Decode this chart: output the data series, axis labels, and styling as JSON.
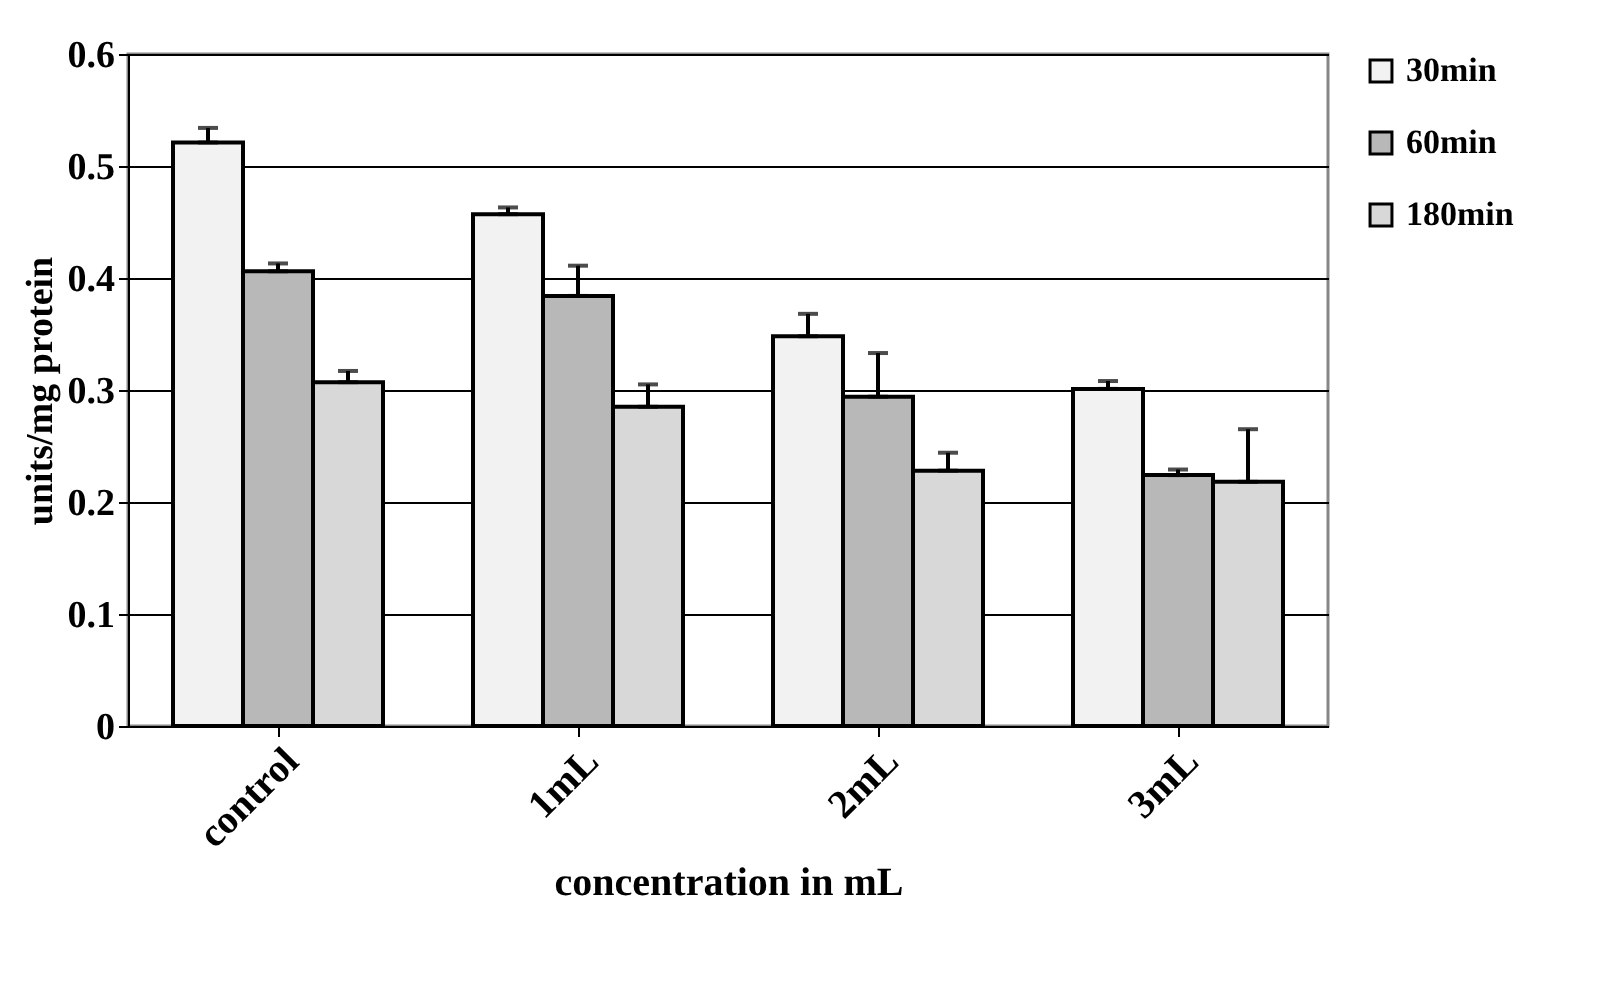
{
  "chart_data": {
    "type": "bar",
    "xlabel": "concentration in mL",
    "ylabel": "units/mg protein",
    "categories": [
      "control",
      "1mL",
      "2mL",
      "3mL"
    ],
    "series": [
      {
        "name": "30min",
        "color": "#f2f2f2",
        "values": [
          0.521,
          0.457,
          0.348,
          0.301
        ],
        "errors": [
          [
            0.521,
            0.534
          ],
          [
            0.457,
            0.463
          ],
          [
            0.348,
            0.368
          ],
          [
            0.301,
            0.308
          ]
        ]
      },
      {
        "name": "60min",
        "color": "#b8b8b8",
        "values": [
          0.406,
          0.384,
          0.294,
          0.224
        ],
        "errors": [
          [
            0.406,
            0.413
          ],
          [
            0.384,
            0.411
          ],
          [
            0.294,
            0.333
          ],
          [
            0.224,
            0.229
          ]
        ]
      },
      {
        "name": "180min",
        "color": "#d8d8d8",
        "values": [
          0.307,
          0.285,
          0.228,
          0.218
        ],
        "errors": [
          [
            0.307,
            0.317
          ],
          [
            0.285,
            0.305
          ],
          [
            0.228,
            0.244
          ],
          [
            0.218,
            0.265
          ]
        ]
      }
    ],
    "ylim": [
      0,
      0.6
    ],
    "yticks": [
      0,
      0.1,
      0.2,
      0.3,
      0.4,
      0.5,
      0.6
    ],
    "grid": "y",
    "legend": "right"
  }
}
